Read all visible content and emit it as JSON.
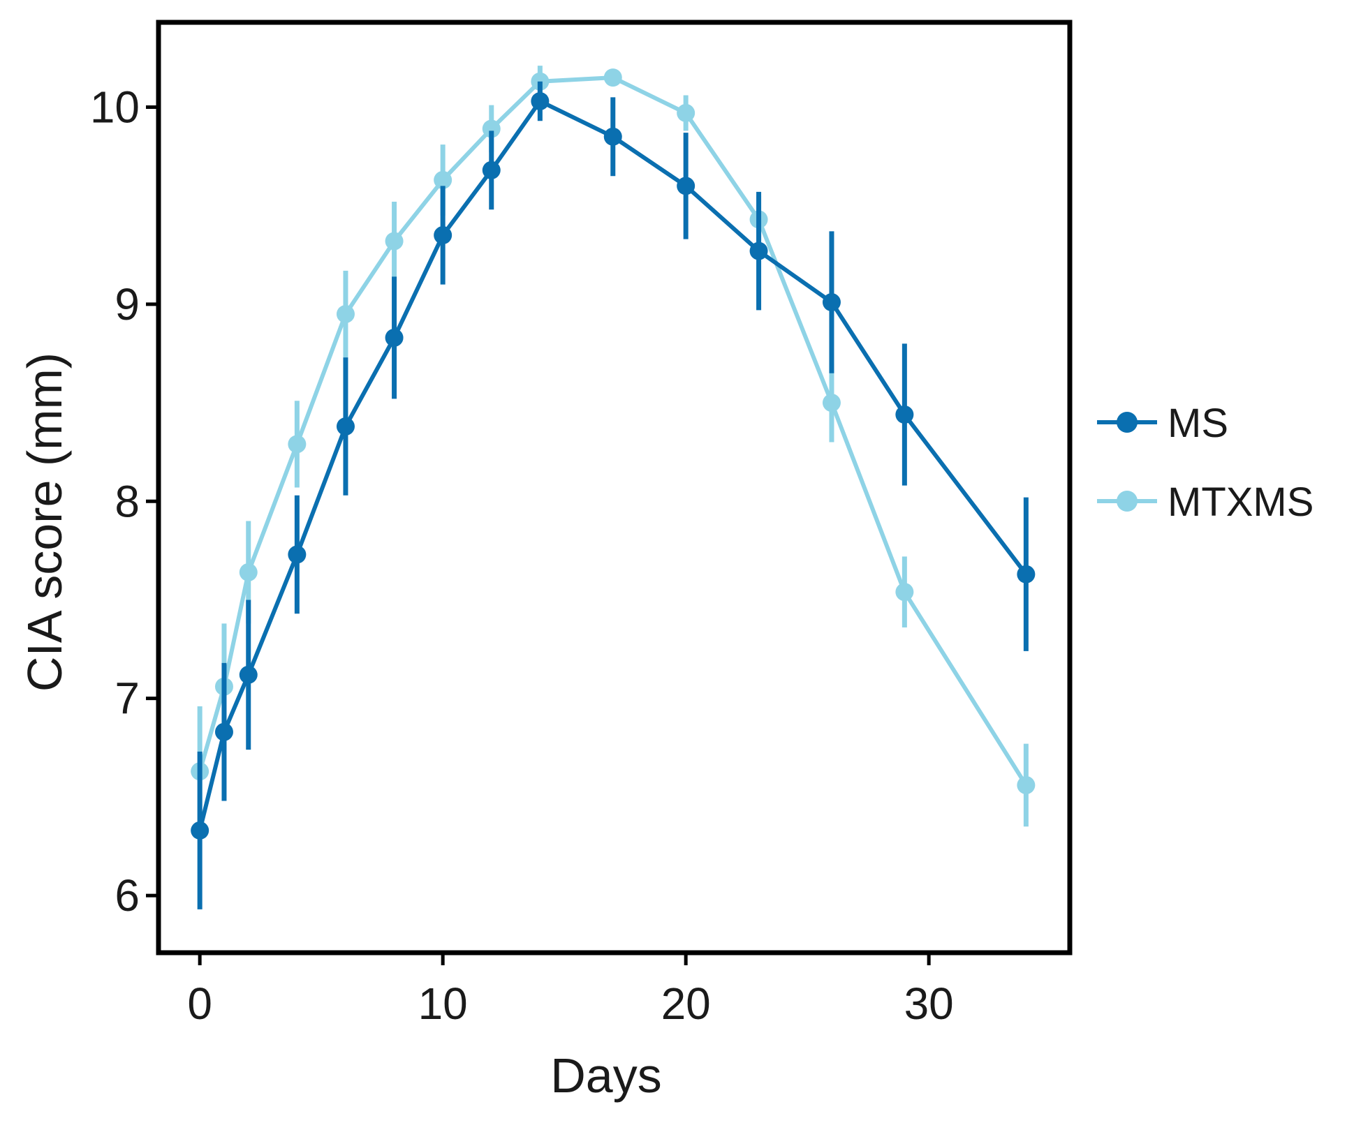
{
  "chart_data": {
    "type": "line",
    "title": "",
    "xlabel": "Days",
    "ylabel": "CIA score (mm)",
    "xlim": [
      -1.7,
      35.8
    ],
    "ylim": [
      5.71,
      10.43
    ],
    "xticks": [
      0,
      10,
      20,
      30
    ],
    "yticks": [
      6,
      7,
      8,
      9,
      10
    ],
    "xtick_labels": [
      "0",
      "10",
      "20",
      "30"
    ],
    "ytick_labels": [
      "6",
      "7",
      "8",
      "9",
      "10"
    ],
    "grid": false,
    "legend_position": "right",
    "series": [
      {
        "name": "MS",
        "color": "#0a6fb0",
        "x": [
          0,
          1,
          2,
          4,
          6,
          8,
          10,
          12,
          14,
          17,
          20,
          23,
          26,
          29,
          34
        ],
        "y": [
          6.33,
          6.83,
          7.12,
          7.73,
          8.38,
          8.83,
          9.35,
          9.68,
          10.03,
          9.85,
          9.6,
          9.27,
          9.01,
          8.44,
          7.63
        ],
        "err": [
          0.4,
          0.35,
          0.38,
          0.3,
          0.35,
          0.31,
          0.25,
          0.2,
          0.1,
          0.2,
          0.27,
          0.3,
          0.36,
          0.36,
          0.39
        ]
      },
      {
        "name": "MTXMS",
        "color": "#8ed3e6",
        "x": [
          0,
          1,
          2,
          4,
          6,
          8,
          10,
          12,
          14,
          17,
          20,
          23,
          26,
          29,
          34
        ],
        "y": [
          6.63,
          7.06,
          7.64,
          8.29,
          8.95,
          9.32,
          9.63,
          9.89,
          10.13,
          10.15,
          9.97,
          9.43,
          8.5,
          7.54,
          6.56
        ],
        "err": [
          0.33,
          0.32,
          0.26,
          0.22,
          0.22,
          0.2,
          0.18,
          0.12,
          0.08,
          0.04,
          0.09,
          0.12,
          0.2,
          0.18,
          0.21
        ]
      }
    ]
  }
}
